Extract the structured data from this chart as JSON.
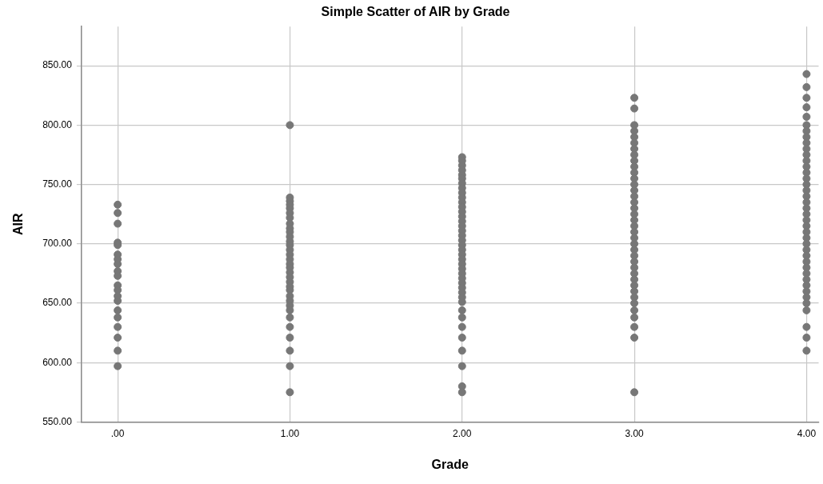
{
  "chart_data": {
    "type": "scatter",
    "title": "Simple Scatter of AIR by Grade",
    "xlabel": "Grade",
    "ylabel": "AIR",
    "xlim": [
      -0.21,
      4.07
    ],
    "xticks": [
      {
        "value": 0,
        "label": ".00"
      },
      {
        "value": 1,
        "label": "1.00"
      },
      {
        "value": 2,
        "label": "2.00"
      },
      {
        "value": 3,
        "label": "3.00"
      },
      {
        "value": 4,
        "label": "4.00"
      }
    ],
    "ylim": [
      550,
      883
    ],
    "yticks": [
      {
        "value": 550,
        "label": "550.00"
      },
      {
        "value": 600,
        "label": "600.00"
      },
      {
        "value": 650,
        "label": "650.00"
      },
      {
        "value": 700,
        "label": "700.00"
      },
      {
        "value": 750,
        "label": "750.00"
      },
      {
        "value": 800,
        "label": "800.00"
      },
      {
        "value": 850,
        "label": "850.00"
      }
    ],
    "grid": true,
    "marker": "circle",
    "color": "#777777",
    "x": [
      0,
      0,
      0,
      0,
      0,
      0,
      0,
      0,
      0,
      0,
      0,
      0,
      0,
      0,
      0,
      0,
      0,
      0,
      0,
      0,
      1,
      1,
      1,
      1,
      1,
      1,
      1,
      1,
      1,
      1,
      1,
      1,
      1,
      1,
      1,
      1,
      1,
      1,
      1,
      1,
      1,
      1,
      1,
      1,
      1,
      1,
      1,
      1,
      1,
      1,
      1,
      1,
      1,
      2,
      2,
      2,
      2,
      2,
      2,
      2,
      2,
      2,
      2,
      2,
      2,
      2,
      2,
      2,
      2,
      2,
      2,
      2,
      2,
      2,
      2,
      2,
      2,
      2,
      2,
      2,
      2,
      2,
      2,
      2,
      2,
      2,
      2,
      2,
      2,
      2,
      2,
      2,
      2,
      3,
      3,
      3,
      3,
      3,
      3,
      3,
      3,
      3,
      3,
      3,
      3,
      3,
      3,
      3,
      3,
      3,
      3,
      3,
      3,
      3,
      3,
      3,
      3,
      3,
      3,
      3,
      3,
      3,
      3,
      3,
      3,
      3,
      3,
      3,
      3,
      3,
      3,
      4,
      4,
      4,
      4,
      4,
      4,
      4,
      4,
      4,
      4,
      4,
      4,
      4,
      4,
      4,
      4,
      4,
      4,
      4,
      4,
      4,
      4,
      4,
      4,
      4,
      4,
      4,
      4,
      4,
      4,
      4,
      4,
      4,
      4,
      4,
      4,
      4,
      4,
      4,
      4
    ],
    "values": [
      733,
      726,
      717,
      701,
      699,
      691,
      687,
      683,
      677,
      673,
      665,
      661,
      656,
      652,
      644,
      638,
      630,
      621,
      610,
      597,
      800,
      739,
      736,
      733,
      730,
      726,
      722,
      717,
      713,
      710,
      706,
      702,
      699,
      695,
      691,
      687,
      683,
      680,
      676,
      672,
      668,
      664,
      661,
      656,
      652,
      648,
      644,
      638,
      630,
      621,
      610,
      597,
      575,
      773,
      770,
      766,
      762,
      758,
      755,
      751,
      747,
      743,
      739,
      735,
      731,
      727,
      723,
      719,
      715,
      711,
      707,
      703,
      699,
      695,
      691,
      687,
      683,
      679,
      675,
      671,
      667,
      663,
      659,
      655,
      651,
      644,
      638,
      630,
      621,
      610,
      597,
      580,
      575,
      823,
      814,
      800,
      795,
      790,
      785,
      780,
      775,
      770,
      765,
      760,
      755,
      750,
      745,
      740,
      735,
      730,
      725,
      720,
      715,
      710,
      705,
      700,
      695,
      690,
      685,
      680,
      675,
      670,
      665,
      660,
      655,
      650,
      644,
      638,
      630,
      621,
      575,
      843,
      832,
      823,
      815,
      807,
      800,
      795,
      790,
      785,
      780,
      775,
      770,
      765,
      760,
      755,
      750,
      745,
      740,
      735,
      730,
      725,
      720,
      715,
      710,
      705,
      700,
      695,
      690,
      685,
      680,
      675,
      670,
      665,
      660,
      655,
      650,
      644,
      630,
      621,
      610
    ]
  }
}
